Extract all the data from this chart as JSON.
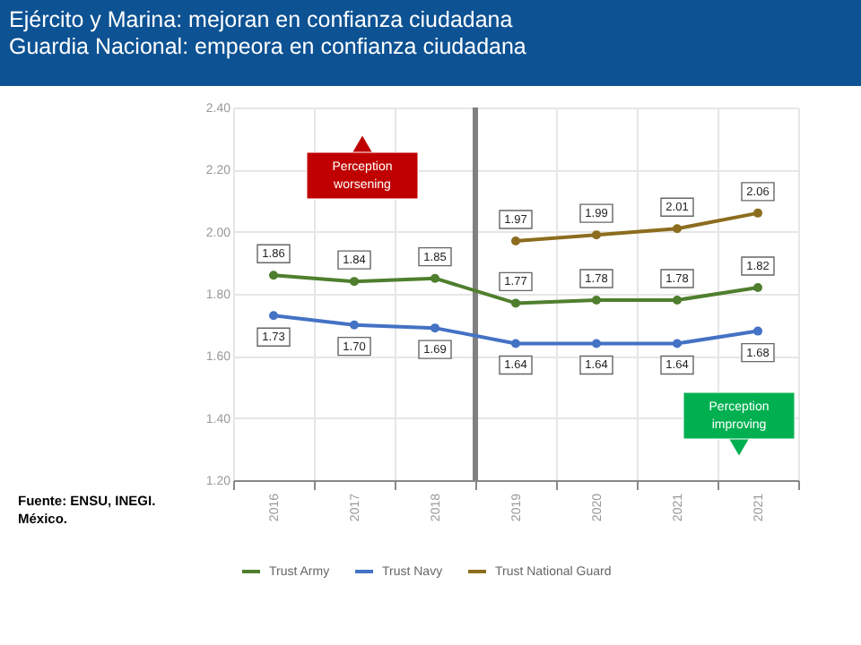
{
  "chart_data": {
    "type": "line",
    "title": "Ejército y Marina: mejoran en confianza ciudadana\nGuardia Nacional: empeora en confianza ciudadana",
    "categories": [
      "2016",
      "2017",
      "2018",
      "2019",
      "2020",
      "2021",
      "2021"
    ],
    "ylim": [
      1.2,
      2.4
    ],
    "yticks": [
      {
        "value": 1.2,
        "label": "1.20"
      },
      {
        "value": 1.4,
        "label": "1.40"
      },
      {
        "value": 1.6,
        "label": "1.60"
      },
      {
        "value": 1.8,
        "label": "1.80"
      },
      {
        "value": 2.0,
        "label": "2.00"
      },
      {
        "value": 2.2,
        "label": "2.20"
      },
      {
        "value": 2.4,
        "label": "2.40"
      }
    ],
    "series": [
      {
        "name": "Trust Army",
        "color": "#4f7f2e",
        "values": [
          1.86,
          1.84,
          1.85,
          1.77,
          1.78,
          1.78,
          1.82
        ],
        "value_labels": [
          "1.86",
          "1.84",
          "1.85",
          "1.77",
          "1.78",
          "1.78",
          "1.82"
        ]
      },
      {
        "name": "Trust Navy",
        "color": "#4472c4",
        "values": [
          1.73,
          1.7,
          1.69,
          1.64,
          1.64,
          1.64,
          1.68
        ],
        "value_labels": [
          "1.73",
          "1.70",
          "1.69",
          "1.64",
          "1.64",
          "1.64",
          "1.68"
        ]
      },
      {
        "name": "Trust National Guard",
        "color": "#8c6d1f",
        "values": [
          null,
          null,
          null,
          1.97,
          1.99,
          2.01,
          2.06
        ],
        "value_labels": [
          null,
          null,
          null,
          "1.97",
          "1.99",
          "2.01",
          "2.06"
        ]
      }
    ],
    "ref_lines": [
      {
        "axis": "x",
        "value": "2018",
        "color": "#808080"
      }
    ],
    "annotations": [
      "Perception worsening",
      "Perception improving",
      "Fuente: ENSU, INEGI. México."
    ],
    "marker": "circle",
    "line_style": "solid",
    "grid": true,
    "legend": "bottom"
  }
}
